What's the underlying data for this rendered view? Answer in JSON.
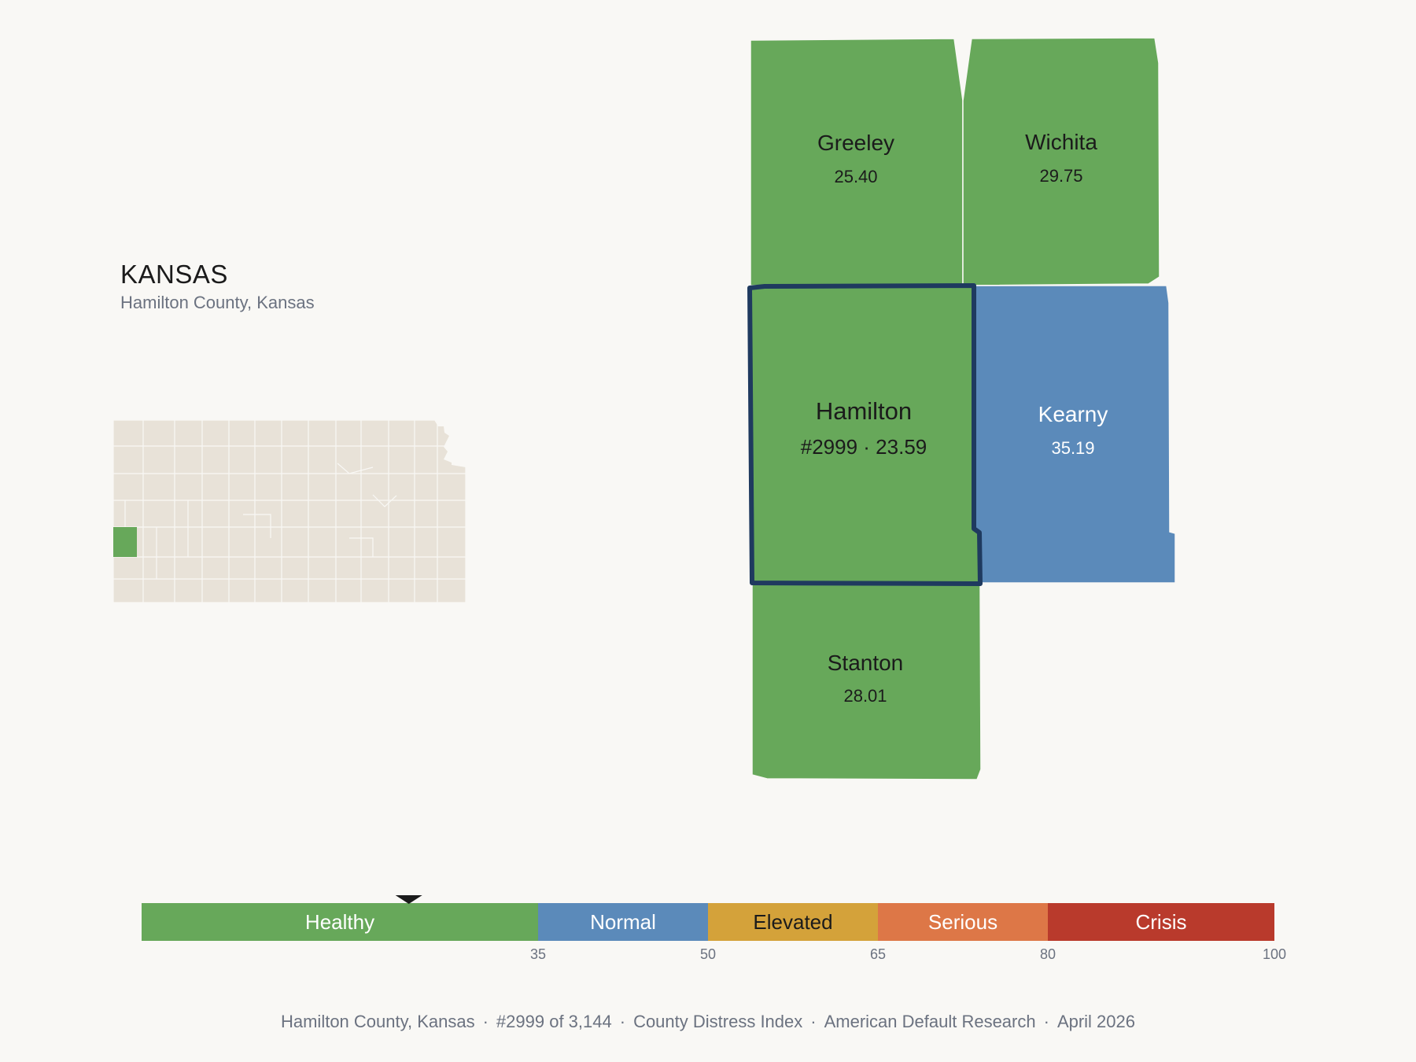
{
  "header": {
    "state": "KANSAS",
    "subtitle": "Hamilton County, Kansas"
  },
  "colors": {
    "background": "#f9f8f5",
    "healthy": "#67a85a",
    "normal": "#5b8aba",
    "elevated": "#d4a23a",
    "serious": "#dd7747",
    "crisis": "#b93a2c",
    "inactive_county": "#e8e2d8",
    "highlight_border": "#1f3a5f"
  },
  "map": {
    "selected": {
      "name": "Hamilton",
      "label": "#2999 · 23.59",
      "rank": 2999,
      "score": 23.59,
      "category": "Healthy"
    },
    "neighbors": [
      {
        "id": "greeley",
        "name": "Greeley",
        "score": "25.40",
        "category": "Healthy"
      },
      {
        "id": "wichita",
        "name": "Wichita",
        "score": "29.75",
        "category": "Healthy"
      },
      {
        "id": "kearny",
        "name": "Kearny",
        "score": "35.19",
        "category": "Normal"
      },
      {
        "id": "stanton",
        "name": "Stanton",
        "score": "28.01",
        "category": "Healthy"
      }
    ]
  },
  "scale": {
    "min": 0,
    "max": 100,
    "marker_value": 23.59,
    "bands": [
      {
        "label": "Healthy",
        "from": 0,
        "to": 35,
        "color": "#67a85a",
        "text_color": "#ffffff"
      },
      {
        "label": "Normal",
        "from": 35,
        "to": 50,
        "color": "#5b8aba",
        "text_color": "#ffffff"
      },
      {
        "label": "Elevated",
        "from": 50,
        "to": 65,
        "color": "#d4a23a",
        "text_color": "#1b1b1b"
      },
      {
        "label": "Serious",
        "from": 65,
        "to": 80,
        "color": "#dd7747",
        "text_color": "#ffffff"
      },
      {
        "label": "Crisis",
        "from": 80,
        "to": 100,
        "color": "#b93a2c",
        "text_color": "#ffffff"
      }
    ],
    "ticks": [
      "35",
      "50",
      "65",
      "80",
      "100"
    ]
  },
  "footer": {
    "county": "Hamilton County, Kansas",
    "rank": "#2999 of 3,144",
    "index": "County Distress Index",
    "source": "American Default Research",
    "date": "April 2026"
  }
}
